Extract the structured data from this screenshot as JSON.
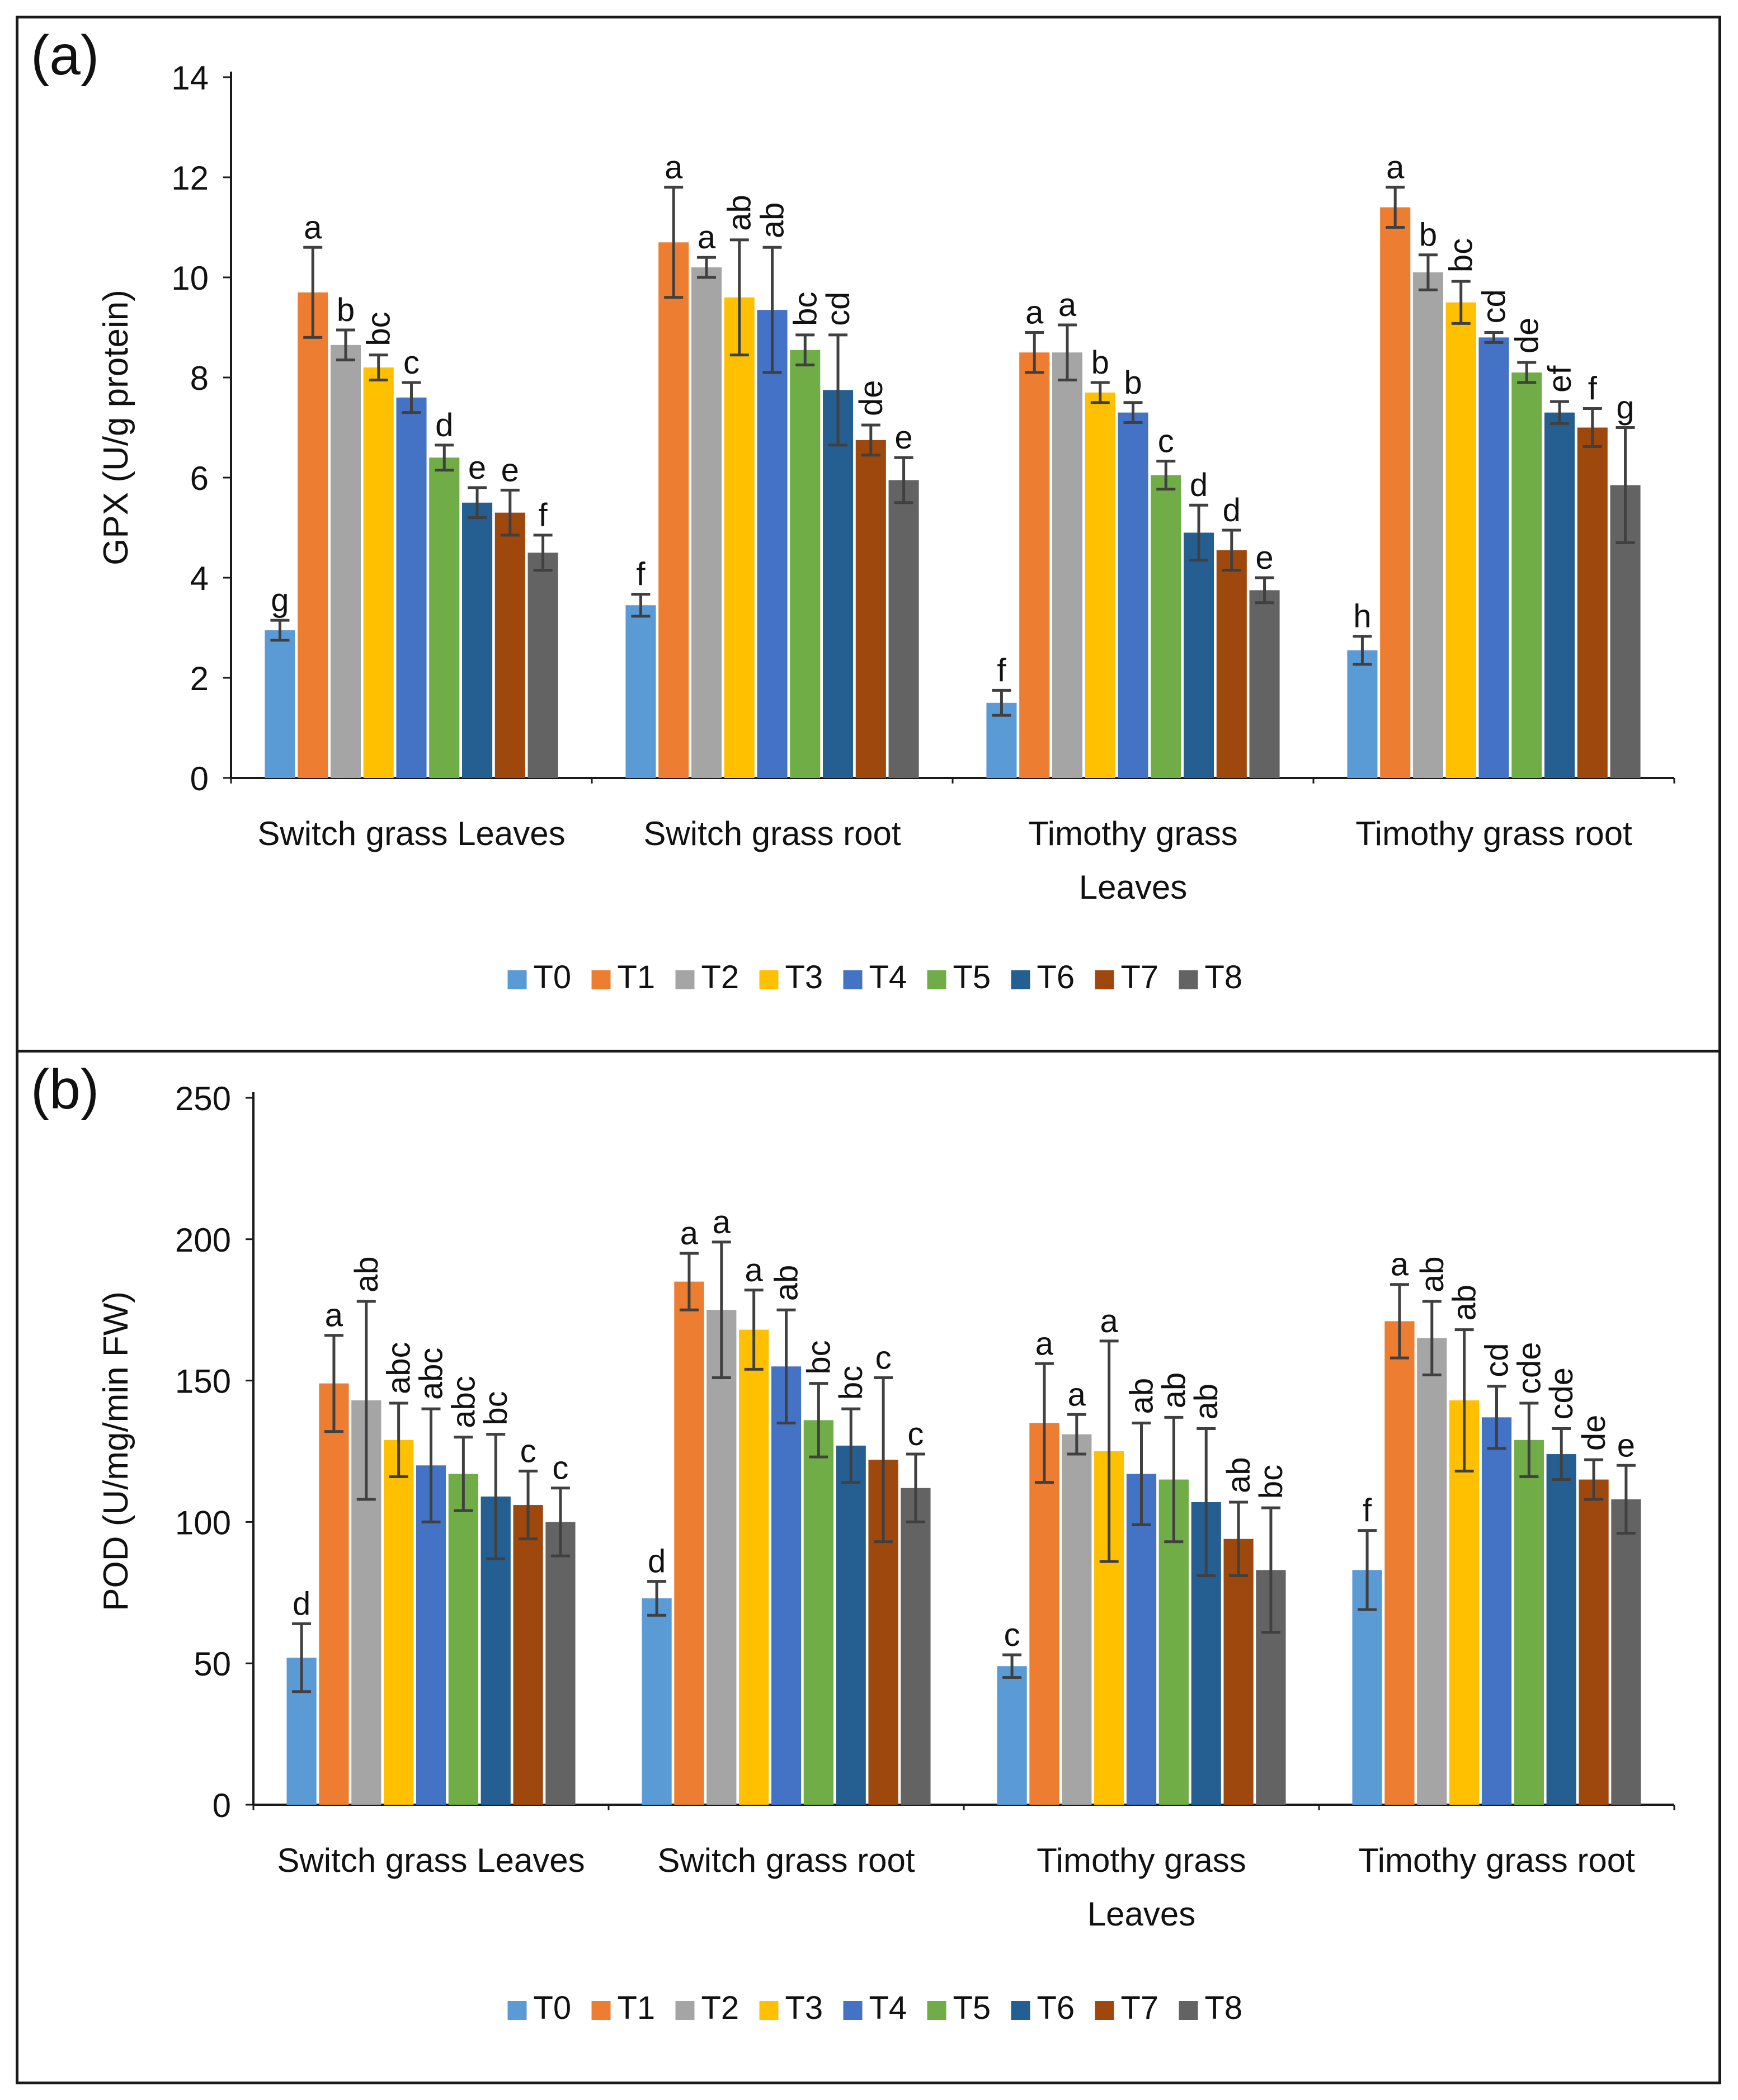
{
  "figure": {
    "panel_labels": [
      "(a)",
      "(b)"
    ]
  },
  "chart_data": [
    {
      "type": "bar",
      "panel": "(a)",
      "title": "",
      "xlabel": "",
      "ylabel": "GPX (U/g protein)",
      "ylim": [
        0,
        14
      ],
      "yticks": [
        0,
        2,
        4,
        6,
        8,
        10,
        12,
        14
      ],
      "grid": false,
      "legend_position": "bottom",
      "categories": [
        "Switch grass Leaves",
        "Switch grass root",
        "Timothy grass Leaves",
        "Timothy grass root"
      ],
      "series": [
        {
          "name": "T0",
          "color": "#5b9bd5",
          "values": [
            2.95,
            3.45,
            1.5,
            2.55
          ],
          "errors": [
            0.2,
            0.22,
            0.25,
            0.28
          ],
          "letters": [
            "g",
            "f",
            "f",
            "h"
          ]
        },
        {
          "name": "T1",
          "color": "#ed7d31",
          "values": [
            9.7,
            10.7,
            8.5,
            11.4
          ],
          "errors": [
            0.9,
            1.1,
            0.4,
            0.4
          ],
          "letters": [
            "a",
            "a",
            "a",
            "a"
          ]
        },
        {
          "name": "T2",
          "color": "#a5a5a5",
          "values": [
            8.65,
            10.2,
            8.5,
            10.1
          ],
          "errors": [
            0.3,
            0.2,
            0.55,
            0.35
          ],
          "letters": [
            "b",
            "a",
            "a",
            "b"
          ]
        },
        {
          "name": "T3",
          "color": "#ffc000",
          "values": [
            8.2,
            9.6,
            7.7,
            9.5
          ],
          "errors": [
            0.25,
            1.15,
            0.2,
            0.42
          ],
          "letters": [
            "bc",
            "ab",
            "b",
            "bc"
          ]
        },
        {
          "name": "T4",
          "color": "#4472c4",
          "values": [
            7.6,
            9.35,
            7.3,
            8.8
          ],
          "errors": [
            0.3,
            1.25,
            0.2,
            0.1
          ],
          "letters": [
            "c",
            "ab",
            "b",
            "cd"
          ]
        },
        {
          "name": "T5",
          "color": "#70ad47",
          "values": [
            6.4,
            8.55,
            6.05,
            8.1
          ],
          "errors": [
            0.25,
            0.3,
            0.28,
            0.2
          ],
          "letters": [
            "d",
            "bc",
            "c",
            "de"
          ]
        },
        {
          "name": "T6",
          "color": "#255e91",
          "values": [
            5.5,
            7.75,
            4.9,
            7.3
          ],
          "errors": [
            0.3,
            1.1,
            0.55,
            0.22
          ],
          "letters": [
            "e",
            "cd",
            "d",
            "ef"
          ]
        },
        {
          "name": "T7",
          "color": "#9e480e",
          "values": [
            5.3,
            6.75,
            4.55,
            7.0
          ],
          "errors": [
            0.45,
            0.3,
            0.4,
            0.38
          ],
          "letters": [
            "e",
            "de",
            "d",
            "f"
          ]
        },
        {
          "name": "T8",
          "color": "#636363",
          "values": [
            4.5,
            5.95,
            3.75,
            5.85
          ],
          "errors": [
            0.35,
            0.45,
            0.25,
            1.15
          ],
          "letters": [
            "f",
            "e",
            "e",
            "g"
          ]
        }
      ]
    },
    {
      "type": "bar",
      "panel": "(b)",
      "title": "",
      "xlabel": "",
      "ylabel": "POD (U/mg/min FW)",
      "ylim": [
        0,
        250
      ],
      "yticks": [
        0,
        50,
        100,
        150,
        200,
        250
      ],
      "grid": false,
      "legend_position": "bottom",
      "categories": [
        "Switch grass Leaves",
        "Switch grass root",
        "Timothy grass Leaves",
        "Timothy grass root"
      ],
      "series": [
        {
          "name": "T0",
          "color": "#5b9bd5",
          "values": [
            52,
            73,
            49,
            83
          ],
          "errors": [
            12,
            6,
            4,
            14
          ],
          "letters": [
            "d",
            "d",
            "c",
            "f"
          ]
        },
        {
          "name": "T1",
          "color": "#ed7d31",
          "values": [
            149,
            185,
            135,
            171
          ],
          "errors": [
            17,
            10,
            21,
            13
          ],
          "letters": [
            "a",
            "a",
            "a",
            "a"
          ]
        },
        {
          "name": "T2",
          "color": "#a5a5a5",
          "values": [
            143,
            175,
            131,
            165
          ],
          "errors": [
            35,
            24,
            7,
            13
          ],
          "letters": [
            "ab",
            "a",
            "a",
            "ab"
          ]
        },
        {
          "name": "T3",
          "color": "#ffc000",
          "values": [
            129,
            168,
            125,
            143
          ],
          "errors": [
            13,
            14,
            39,
            25
          ],
          "letters": [
            "abc",
            "a",
            "a",
            "ab"
          ]
        },
        {
          "name": "T4",
          "color": "#4472c4",
          "values": [
            120,
            155,
            117,
            137
          ],
          "errors": [
            20,
            20,
            18,
            11
          ],
          "letters": [
            "abc",
            "ab",
            "ab",
            "cd"
          ]
        },
        {
          "name": "T5",
          "color": "#70ad47",
          "values": [
            117,
            136,
            115,
            129
          ],
          "errors": [
            13,
            13,
            22,
            13
          ],
          "letters": [
            "abc",
            "bc",
            "ab",
            "cde"
          ]
        },
        {
          "name": "T6",
          "color": "#255e91",
          "values": [
            109,
            127,
            107,
            124
          ],
          "errors": [
            22,
            13,
            26,
            9
          ],
          "letters": [
            "bc",
            "bc",
            "ab",
            "cde"
          ]
        },
        {
          "name": "T7",
          "color": "#9e480e",
          "values": [
            106,
            122,
            94,
            115
          ],
          "errors": [
            12,
            29,
            13,
            7
          ],
          "letters": [
            "c",
            "c",
            "ab",
            "de"
          ]
        },
        {
          "name": "T8",
          "color": "#636363",
          "values": [
            100,
            112,
            83,
            108
          ],
          "errors": [
            12,
            12,
            22,
            12
          ],
          "letters": [
            "c",
            "c",
            "bc",
            "e"
          ]
        }
      ]
    }
  ]
}
